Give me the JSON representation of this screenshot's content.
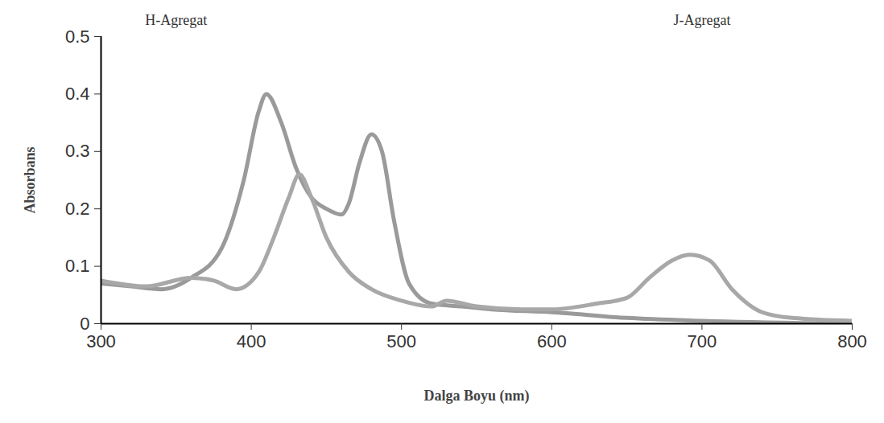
{
  "chart_data": {
    "type": "line",
    "x_label": "Dalga Boyu (nm)",
    "y_label": "Absorbans",
    "xlim": [
      300,
      800
    ],
    "xticks": [
      300,
      400,
      500,
      600,
      700,
      800
    ],
    "ylim": [
      0,
      0.5
    ],
    "yticks": [
      0,
      0.1,
      0.2,
      0.3,
      0.4,
      0.5
    ],
    "grid": false,
    "annotations": [
      {
        "text": "H-Agregat"
      },
      {
        "text": "J-Agregat"
      }
    ],
    "series": [
      {
        "color": "#9a9a9a",
        "x": [
          300,
          320,
          340,
          360,
          380,
          395,
          405,
          410,
          420,
          430,
          440,
          450,
          460,
          465,
          472,
          480,
          487,
          495,
          505,
          520,
          540,
          560,
          600,
          650,
          700,
          800
        ],
        "values": [
          0.07,
          0.065,
          0.06,
          0.08,
          0.13,
          0.25,
          0.37,
          0.4,
          0.35,
          0.27,
          0.22,
          0.2,
          0.19,
          0.21,
          0.28,
          0.33,
          0.3,
          0.18,
          0.07,
          0.035,
          0.03,
          0.025,
          0.02,
          0.01,
          0.005,
          0.0
        ]
      },
      {
        "color": "#a8a8a8",
        "x": [
          300,
          330,
          360,
          375,
          390,
          405,
          415,
          425,
          432,
          440,
          450,
          465,
          480,
          500,
          520,
          530,
          550,
          580,
          600,
          630,
          650,
          665,
          680,
          692,
          705,
          720,
          740,
          760,
          800
        ],
        "values": [
          0.075,
          0.065,
          0.08,
          0.075,
          0.06,
          0.09,
          0.15,
          0.22,
          0.26,
          0.22,
          0.15,
          0.09,
          0.06,
          0.04,
          0.03,
          0.04,
          0.03,
          0.025,
          0.025,
          0.035,
          0.045,
          0.08,
          0.11,
          0.12,
          0.11,
          0.06,
          0.02,
          0.01,
          0.005
        ]
      }
    ]
  }
}
